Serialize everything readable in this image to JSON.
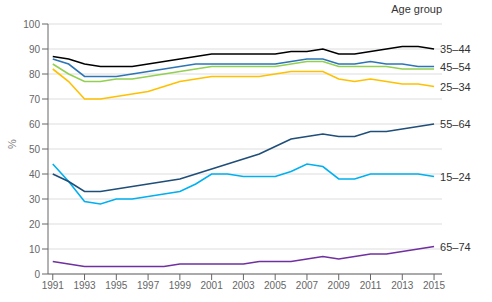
{
  "chart_data": {
    "type": "line",
    "y_label": "%",
    "annotations": [
      {
        "text": "Age group"
      }
    ],
    "x": [
      1991,
      1992,
      1993,
      1994,
      1995,
      1996,
      1997,
      1998,
      1999,
      2000,
      2001,
      2002,
      2003,
      2004,
      2005,
      2006,
      2007,
      2008,
      2009,
      2010,
      2011,
      2012,
      2013,
      2014,
      2015
    ],
    "series": [
      {
        "color": "#92d050",
        "values": [
          84,
          80,
          77,
          77,
          78,
          78,
          79,
          80,
          81,
          82,
          83,
          83,
          83,
          83,
          83,
          84,
          85,
          85,
          83,
          83,
          83,
          83,
          82,
          82,
          82
        ]
      },
      {
        "name": "25–34",
        "color": "#ffc000",
        "values": [
          82,
          77,
          70,
          70,
          71,
          72,
          73,
          75,
          77,
          78,
          79,
          79,
          79,
          79,
          80,
          81,
          81,
          81,
          78,
          77,
          78,
          77,
          76,
          76,
          75
        ]
      },
      {
        "name": "45–54",
        "color": "#2e75b6",
        "values": [
          86,
          84,
          79,
          79,
          79,
          80,
          81,
          82,
          83,
          84,
          84,
          84,
          84,
          84,
          84,
          85,
          86,
          86,
          84,
          84,
          85,
          84,
          84,
          83,
          83
        ]
      },
      {
        "name": "15–24",
        "color": "#00b0f0",
        "values": [
          44,
          37,
          29,
          28,
          30,
          30,
          31,
          32,
          33,
          36,
          40,
          40,
          39,
          39,
          39,
          41,
          44,
          43,
          38,
          38,
          40,
          40,
          40,
          40,
          39
        ]
      },
      {
        "name": "55–64",
        "color": "#1f4e79",
        "values": [
          40,
          37,
          33,
          33,
          34,
          35,
          36,
          37,
          38,
          40,
          42,
          44,
          46,
          48,
          51,
          54,
          55,
          56,
          55,
          55,
          57,
          57,
          58,
          59,
          60
        ]
      },
      {
        "name": "65–74",
        "color": "#7030a0",
        "values": [
          5,
          4,
          3,
          3,
          3,
          3,
          3,
          3,
          4,
          4,
          4,
          4,
          4,
          5,
          5,
          5,
          6,
          7,
          6,
          7,
          8,
          8,
          9,
          10,
          11
        ]
      },
      {
        "name": "35–44",
        "color": "#000000",
        "values": [
          87,
          86,
          84,
          83,
          83,
          83,
          84,
          85,
          86,
          87,
          88,
          88,
          88,
          88,
          88,
          89,
          89,
          90,
          88,
          88,
          89,
          90,
          91,
          91,
          90
        ]
      }
    ],
    "xlim": [
      1990.7,
      2015.5
    ],
    "xticks": [
      1991,
      1993,
      1995,
      1997,
      1999,
      2001,
      2003,
      2005,
      2007,
      2009,
      2011,
      2013,
      2015
    ],
    "ylim": [
      0,
      100
    ],
    "yticks": [
      0,
      10,
      20,
      30,
      40,
      50,
      60,
      70,
      80,
      90,
      100
    ],
    "grid": true
  }
}
